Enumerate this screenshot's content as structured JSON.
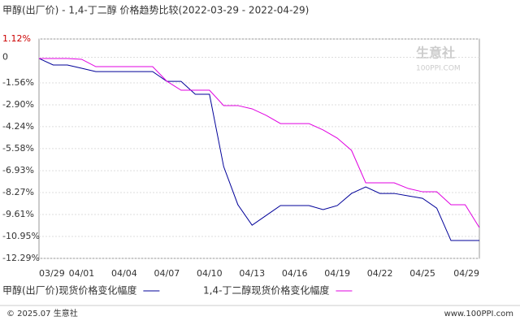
{
  "chart_data": {
    "type": "line",
    "title": "甲醇(出厂价) - 1,4-丁二醇 价格趋势比较(2022-03-29 - 2022-04-29)",
    "categories": [
      "03/29",
      null,
      null,
      "04/01",
      null,
      null,
      "04/04",
      null,
      null,
      "04/07",
      null,
      null,
      "04/10",
      null,
      null,
      "04/13",
      null,
      null,
      "04/16",
      null,
      null,
      "04/19",
      null,
      null,
      "04/22",
      null,
      null,
      "04/25",
      null,
      null,
      null,
      "04/29"
    ],
    "series": [
      {
        "name": "甲醇(出厂价)现货价格变化幅度",
        "color": "#000099",
        "values": [
          -0.07,
          -0.47,
          -0.47,
          -0.67,
          -0.87,
          -0.87,
          -0.87,
          -0.87,
          -0.87,
          -1.47,
          -1.47,
          -2.26,
          -2.26,
          -6.68,
          -9.01,
          -10.26,
          -9.66,
          -9.06,
          -9.06,
          -9.06,
          -9.31,
          -9.06,
          -8.32,
          -7.92,
          -8.32,
          -8.32,
          -8.47,
          -8.62,
          -9.22,
          -11.2,
          -11.2,
          -11.2
        ]
      },
      {
        "name": "1,4-丁二醇现货价格变化幅度",
        "color": "#e000e0",
        "values": [
          -0.07,
          -0.07,
          -0.07,
          -0.12,
          -0.57,
          -0.57,
          -0.57,
          -0.57,
          -0.57,
          -1.46,
          -2.01,
          -2.01,
          -2.01,
          -2.95,
          -2.95,
          -3.15,
          -3.55,
          -4.05,
          -4.05,
          -4.05,
          -4.44,
          -4.94,
          -5.69,
          -7.67,
          -7.67,
          -7.67,
          -8.02,
          -8.22,
          -8.22,
          -9.01,
          -9.01,
          -10.41
        ]
      }
    ],
    "ylim": [
      -12.29,
      1.12
    ],
    "yticks": [
      {
        "value": 1.12,
        "label": "1.12%"
      },
      0,
      {
        "value": -1.56,
        "label": "-1.56%"
      },
      {
        "value": -2.9,
        "label": "-2.90%"
      },
      {
        "value": -4.24,
        "label": "-4.24%"
      },
      {
        "value": -5.58,
        "label": "-5.58%"
      },
      {
        "value": -6.93,
        "label": "-6.93%"
      },
      {
        "value": -8.27,
        "label": "-8.27%"
      },
      {
        "value": -9.61,
        "label": "-9.61%"
      },
      {
        "value": -10.95,
        "label": "-10.95%"
      },
      {
        "value": -12.29,
        "label": "-12.29%"
      }
    ],
    "grid": true,
    "watermark": [
      "生意社",
      "100PPI.COM"
    ]
  },
  "footer": {
    "left": "© 2025.07 生意社",
    "right": "www.100PPI.com"
  }
}
